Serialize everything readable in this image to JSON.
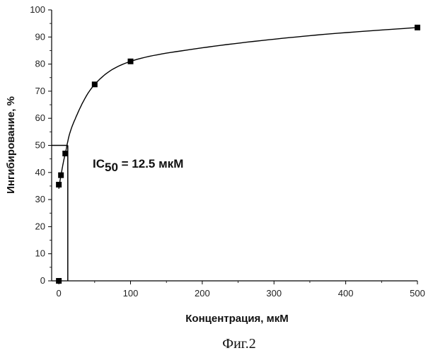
{
  "chart_data": {
    "type": "scatter",
    "xlabel": "Концентрация, мкМ",
    "ylabel": "Ингибирование, %",
    "xlim": [
      -10,
      500
    ],
    "ylim": [
      0,
      100
    ],
    "xticks": [
      0,
      100,
      200,
      300,
      400,
      500
    ],
    "yticks": [
      0,
      10,
      20,
      30,
      40,
      50,
      60,
      70,
      80,
      90,
      100
    ],
    "grid": false,
    "series": [
      {
        "points": [
          {
            "x": 0,
            "y": 0
          },
          {
            "x": 0,
            "y": 35.5
          },
          {
            "x": 3,
            "y": 39
          },
          {
            "x": 9,
            "y": 47
          },
          {
            "x": 50,
            "y": 72.5
          },
          {
            "x": 100,
            "y": 81
          },
          {
            "x": 500,
            "y": 93.5
          }
        ],
        "marker": "square",
        "fit_curve": true
      }
    ],
    "ic50": {
      "x": 12.5,
      "y": 50
    },
    "annotation": {
      "prefix": "IC",
      "subscript": "50",
      "rest": " = 12.5 мкМ"
    }
  },
  "caption": "Фиг.2"
}
